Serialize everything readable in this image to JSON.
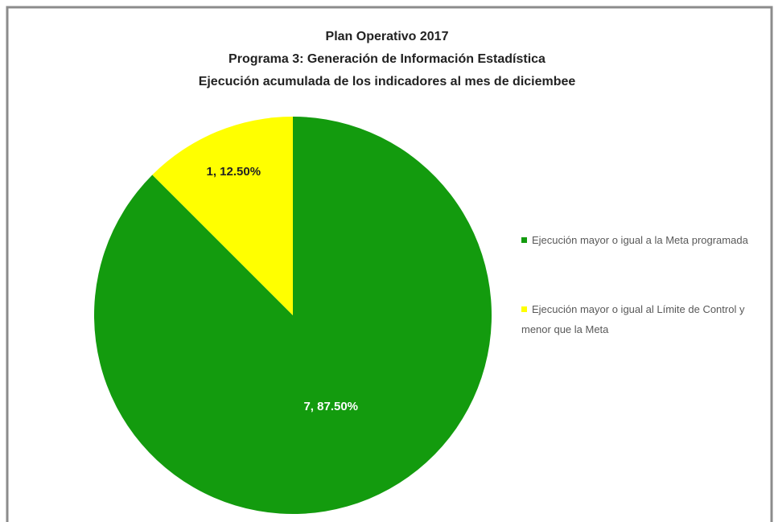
{
  "chart_data": {
    "type": "pie",
    "title": [
      "Plan Operativo 2017",
      "Programa 3: Generación de Información Estadística",
      "Ejecución acumulada de los indicadores al mes de diciembee"
    ],
    "categories": [
      "Ejecución mayor o igual a la Meta programada",
      "Ejecución mayor o igual al Límite de Control y menor que la Meta"
    ],
    "values": [
      7,
      1
    ],
    "value_labels": [
      "7, 87.50%",
      "1, 12.50%"
    ],
    "colors": [
      "#139b0e",
      "#ffff00"
    ],
    "legend": "right"
  }
}
